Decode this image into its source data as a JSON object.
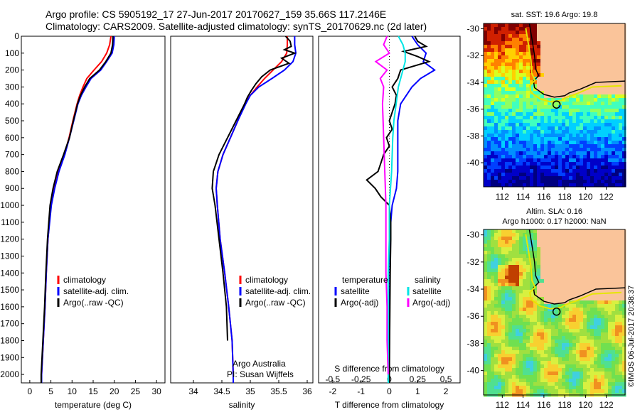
{
  "header": {
    "line1": "Argo profile: CS 5905192_17 27-Jun-2017 20170627_159 35.66S 117.2146E",
    "line2": "Climatology: CARS2009. Satellite-adjusted climatology: synTS_20170629.nc (2d later)"
  },
  "maps": {
    "sst_title": "sat. SST: 19.6 Argo: 19.8",
    "sla_title1": "Altim. SLA: 0.16",
    "sla_title2": "Argo h1000: 0.17 h2000: NaN",
    "lat_ticks": [
      "-30",
      "-32",
      "-34",
      "-36",
      "-38",
      "-40"
    ],
    "lon_ticks": [
      "112",
      "114",
      "116",
      "118",
      "120",
      "122"
    ],
    "float_marker": {
      "lon": 117.2146,
      "lat": -35.66
    },
    "stamp": "©IMOS 06-Jul-2017 20:38:37"
  },
  "colors": {
    "climatology": "#ff0000",
    "satellite": "#0000ff",
    "argo": "#000000",
    "sat_s": "#00e5e5",
    "argo_s": "#ff00ff",
    "land": "#fac49a"
  },
  "chart_data": [
    {
      "type": "line",
      "xlabel": "temperature (deg C)",
      "ylabel": "",
      "xlim": [
        -2,
        32
      ],
      "ylim": [
        2050,
        0
      ],
      "x_ticks": [
        "0",
        "5",
        "10",
        "15",
        "20",
        "25",
        "30"
      ],
      "y_ticks": [
        "0",
        "100",
        "200",
        "300",
        "400",
        "500",
        "600",
        "700",
        "800",
        "900",
        "1000",
        "1100",
        "1200",
        "1300",
        "1400",
        "1500",
        "1600",
        "1700",
        "1800",
        "1900",
        "2000"
      ],
      "legend": [
        "climatology",
        "satellite-adj. clim.",
        "Argo(..raw -QC)"
      ],
      "series": [
        {
          "name": "climatology",
          "depth": [
            0,
            50,
            100,
            150,
            200,
            250,
            300,
            350,
            400,
            500,
            600,
            700,
            800,
            900,
            1000,
            1200,
            1400,
            1600,
            1800,
            2000,
            2050
          ],
          "values": [
            19.2,
            18.9,
            18.2,
            17.0,
            15.2,
            13.5,
            12.6,
            11.8,
            11.2,
            10.2,
            9.3,
            8.2,
            6.6,
            5.8,
            5.0,
            4.3,
            3.9,
            3.6,
            3.2,
            2.8,
            2.8
          ]
        },
        {
          "name": "satellite-adj. clim.",
          "depth": [
            0,
            50,
            100,
            150,
            200,
            250,
            300,
            350,
            400,
            500,
            600,
            700,
            800,
            900,
            1000,
            1200,
            1400,
            1600,
            1800,
            2000,
            2050
          ],
          "values": [
            20.0,
            19.9,
            19.5,
            18.2,
            16.8,
            14.5,
            13.3,
            12.2,
            11.4,
            10.4,
            9.4,
            8.3,
            6.9,
            5.9,
            5.1,
            4.3,
            3.9,
            3.6,
            3.2,
            2.8,
            2.8
          ]
        },
        {
          "name": "Argo(..raw -QC)",
          "depth": [
            0,
            50,
            100,
            150,
            200,
            250,
            300,
            350,
            400,
            500,
            600,
            700,
            800,
            900,
            1000,
            1200,
            1400,
            1600,
            1800,
            2000,
            2050
          ],
          "values": [
            19.7,
            19.6,
            19.2,
            18.0,
            16.5,
            14.2,
            13.0,
            12.0,
            11.3,
            10.3,
            9.4,
            8.0,
            6.5,
            5.5,
            4.8,
            4.2,
            3.8,
            3.5,
            3.1,
            2.7,
            2.7
          ]
        }
      ]
    },
    {
      "type": "line",
      "xlabel": "salinity",
      "ylabel": "",
      "xlim": [
        33.6,
        36.1
      ],
      "ylim": [
        2050,
        0
      ],
      "x_ticks": [
        "34",
        "34.5",
        "35",
        "35.5",
        "36"
      ],
      "legend": [
        "climatology",
        "satellite-adj. clim.",
        "Argo(..raw -QC)"
      ],
      "annotation": [
        "Argo Australia",
        "PI: Susan Wijffels"
      ],
      "series": [
        {
          "name": "climatology",
          "depth": [
            0,
            50,
            100,
            150,
            200,
            250,
            300,
            350,
            400,
            500,
            600,
            700,
            800,
            900,
            1000,
            1200,
            1400,
            1600,
            1800,
            2000,
            2050
          ],
          "values": [
            35.65,
            35.65,
            35.64,
            35.55,
            35.4,
            35.25,
            35.12,
            35.0,
            34.9,
            34.78,
            34.65,
            34.52,
            34.43,
            34.4,
            34.42,
            34.47,
            34.55,
            34.62,
            34.68,
            34.7,
            34.7
          ]
        },
        {
          "name": "satellite-adj. clim.",
          "depth": [
            0,
            50,
            100,
            150,
            200,
            250,
            300,
            350,
            400,
            500,
            600,
            700,
            800,
            900,
            1000,
            1200,
            1400,
            1600,
            1800,
            2000,
            2050
          ],
          "values": [
            35.78,
            35.78,
            35.8,
            35.75,
            35.6,
            35.38,
            35.15,
            35.0,
            34.92,
            34.78,
            34.65,
            34.52,
            34.43,
            34.4,
            34.42,
            34.47,
            34.55,
            34.62,
            34.68,
            34.7,
            34.7
          ]
        },
        {
          "name": "Argo(..raw -QC)",
          "depth": [
            0,
            30,
            60,
            80,
            100,
            130,
            160,
            200,
            240,
            280,
            320,
            360,
            400,
            500,
            600,
            700,
            800,
            900,
            1000,
            1200,
            1400,
            1600,
            1800
          ],
          "values": [
            35.62,
            35.7,
            35.72,
            35.6,
            35.78,
            35.55,
            35.68,
            35.35,
            35.2,
            35.1,
            35.02,
            34.95,
            34.9,
            34.75,
            34.6,
            34.45,
            34.35,
            34.33,
            34.38,
            34.45,
            34.52,
            34.58,
            34.6
          ]
        }
      ]
    },
    {
      "type": "line",
      "xlabel": "T difference from climatology",
      "x2label": "S difference from climatology",
      "xlim": [
        -2.5,
        2.5
      ],
      "x2lim": [
        -0.625,
        0.625
      ],
      "ylim": [
        2050,
        0
      ],
      "x_ticks": [
        "-2",
        "-1",
        "0",
        "1",
        "2"
      ],
      "x2_ticks": [
        "-0.5",
        "-0.25",
        "0",
        "0.25",
        "0.5"
      ],
      "legend": [
        "temperature",
        "satellite",
        "Argo(-adj)",
        "salinity",
        "satellite",
        "Argo(-adj)"
      ],
      "series": [
        {
          "name": "satellite",
          "depth": [
            0,
            50,
            100,
            150,
            200,
            250,
            300,
            400,
            500,
            600,
            700,
            800,
            900,
            1000,
            1100,
            1200,
            1400,
            1600,
            1800,
            2000,
            2050
          ],
          "values": [
            0.8,
            1.0,
            1.3,
            1.2,
            1.6,
            1.1,
            0.8,
            0.4,
            0.3,
            0.3,
            0.3,
            0.3,
            0.25,
            0.1,
            0.05,
            0.03,
            0.02,
            0.01,
            0.0,
            0.0,
            0.0
          ]
        },
        {
          "name": "Argo(-adj)",
          "depth": [
            0,
            30,
            60,
            90,
            120,
            150,
            200,
            250,
            300,
            350,
            400,
            450,
            500,
            550,
            600,
            650,
            700,
            750,
            800,
            850,
            900,
            950,
            1000,
            1100,
            1200,
            1400,
            1600,
            1800,
            2000,
            2050
          ],
          "values": [
            0.9,
            1.0,
            1.3,
            0.5,
            1.0,
            1.4,
            0.4,
            0.3,
            0.1,
            0.25,
            0.2,
            0.1,
            0.0,
            0.1,
            -0.1,
            0.0,
            -0.2,
            -0.3,
            -0.4,
            -0.8,
            -0.5,
            -0.3,
            0.0,
            0.05,
            0.05,
            0.03,
            0.02,
            0.01,
            0.0,
            0.0
          ]
        },
        {
          "name": "satellite (S)",
          "depth": [
            0,
            50,
            100,
            150,
            200,
            300,
            400,
            500,
            600,
            800,
            1000,
            1200,
            1400,
            1600,
            1800,
            2000,
            2050
          ],
          "values": [
            0.08,
            0.12,
            0.14,
            0.14,
            0.12,
            0.08,
            0.06,
            0.04,
            0.03,
            0.02,
            0.0,
            0.0,
            -0.01,
            -0.01,
            -0.01,
            -0.01,
            -0.01
          ]
        },
        {
          "name": "Argo(-adj) (S)",
          "depth": [
            0,
            50,
            100,
            150,
            200,
            250,
            300,
            400,
            600,
            800,
            1000,
            1200,
            1400,
            1600,
            1800,
            2000
          ],
          "values": [
            -0.02,
            -0.05,
            0.0,
            -0.12,
            -0.02,
            -0.08,
            -0.05,
            -0.06,
            -0.05,
            -0.04,
            -0.03,
            -0.03,
            -0.03,
            -0.02,
            -0.02,
            -0.01
          ]
        }
      ]
    }
  ]
}
